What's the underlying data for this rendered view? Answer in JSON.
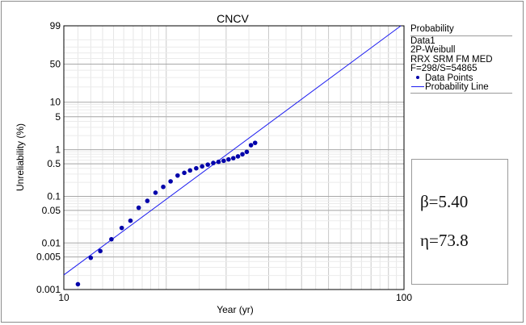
{
  "chart_data": {
    "type": "scatter",
    "title": "CNCV",
    "xlabel": "Year (yr)",
    "ylabel": "Unreliability (%)",
    "x_scale": "log",
    "y_scale": "weibull",
    "xlim": [
      10,
      100
    ],
    "ylim": [
      0.001,
      99
    ],
    "x_ticks": [
      {
        "value": 10,
        "label": "10"
      },
      {
        "value": 100,
        "label": "100"
      }
    ],
    "y_ticks": [
      {
        "value": 99,
        "label": "99"
      },
      {
        "value": 50,
        "label": "50"
      },
      {
        "value": 10,
        "label": "10"
      },
      {
        "value": 5,
        "label": "5"
      },
      {
        "value": 1,
        "label": "1"
      },
      {
        "value": 0.5,
        "label": "0.5"
      },
      {
        "value": 0.1,
        "label": "0.1"
      },
      {
        "value": 0.05,
        "label": "0.05"
      },
      {
        "value": 0.01,
        "label": "0.01"
      },
      {
        "value": 0.005,
        "label": "0.005"
      },
      {
        "value": 0.001,
        "label": "0.001"
      }
    ],
    "grid": true,
    "series": [
      {
        "name": "Data Points",
        "type": "scatter",
        "color": "#0000aa",
        "points": [
          {
            "x": 11.0,
            "y": 0.0013
          },
          {
            "x": 12.0,
            "y": 0.0048
          },
          {
            "x": 12.8,
            "y": 0.0067
          },
          {
            "x": 13.8,
            "y": 0.012
          },
          {
            "x": 14.8,
            "y": 0.021
          },
          {
            "x": 15.7,
            "y": 0.03
          },
          {
            "x": 16.6,
            "y": 0.057
          },
          {
            "x": 17.6,
            "y": 0.08
          },
          {
            "x": 18.6,
            "y": 0.12
          },
          {
            "x": 19.6,
            "y": 0.16
          },
          {
            "x": 20.6,
            "y": 0.21
          },
          {
            "x": 21.6,
            "y": 0.28
          },
          {
            "x": 22.6,
            "y": 0.32
          },
          {
            "x": 23.5,
            "y": 0.36
          },
          {
            "x": 24.5,
            "y": 0.4
          },
          {
            "x": 25.5,
            "y": 0.44
          },
          {
            "x": 26.5,
            "y": 0.48
          },
          {
            "x": 27.5,
            "y": 0.52
          },
          {
            "x": 28.5,
            "y": 0.55
          },
          {
            "x": 29.5,
            "y": 0.58
          },
          {
            "x": 30.5,
            "y": 0.62
          },
          {
            "x": 31.5,
            "y": 0.66
          },
          {
            "x": 32.5,
            "y": 0.72
          },
          {
            "x": 33.5,
            "y": 0.8
          },
          {
            "x": 34.5,
            "y": 0.9
          },
          {
            "x": 35.5,
            "y": 1.25
          },
          {
            "x": 36.5,
            "y": 1.4
          }
        ]
      },
      {
        "name": "Probability Line",
        "type": "line",
        "color": "#1c1cf0",
        "beta": 5.4,
        "eta": 73.8
      }
    ],
    "legend": {
      "placement": "right",
      "title": "Probability",
      "lines": [
        "Data1",
        "2P-Weibull",
        "RRX SRM FM MED",
        "F=298/S=54865"
      ],
      "entries": [
        "Data Points",
        "Probability Line"
      ]
    }
  },
  "params": {
    "beta_text": "β=5.40",
    "eta_text": "η=73.8"
  }
}
